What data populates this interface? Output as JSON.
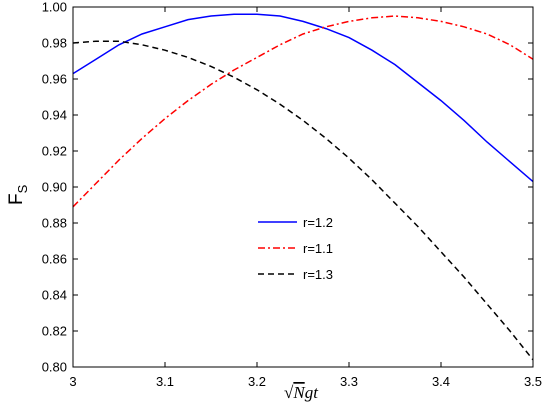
{
  "chart_data": {
    "type": "line",
    "xlabel": {
      "radical": "√",
      "radicand": "N",
      "rest": "gt"
    },
    "ylabel": {
      "main": "F",
      "sub": "S"
    },
    "xlim": [
      3.0,
      3.5
    ],
    "ylim": [
      0.8,
      1.0
    ],
    "xticks": [
      3.0,
      3.1,
      3.2,
      3.3,
      3.4,
      3.5
    ],
    "xtick_labels": [
      "3",
      "3.1",
      "3.2",
      "3.3",
      "3.4",
      "3.5"
    ],
    "yticks": [
      0.8,
      0.82,
      0.84,
      0.86,
      0.88,
      0.9,
      0.92,
      0.94,
      0.96,
      0.98,
      1.0
    ],
    "ytick_labels": [
      "0.80",
      "0.82",
      "0.84",
      "0.86",
      "0.88",
      "0.90",
      "0.92",
      "0.94",
      "0.96",
      "0.98",
      "1.00"
    ],
    "grid": false,
    "legend_position": "center",
    "series": [
      {
        "name": "r=1.2",
        "color": "#0000ff",
        "dash": "solid",
        "x": [
          3.0,
          3.025,
          3.05,
          3.075,
          3.1,
          3.125,
          3.15,
          3.175,
          3.2,
          3.225,
          3.25,
          3.275,
          3.3,
          3.325,
          3.35,
          3.375,
          3.4,
          3.425,
          3.45,
          3.475,
          3.5
        ],
        "y": [
          0.963,
          0.971,
          0.979,
          0.985,
          0.989,
          0.993,
          0.995,
          0.996,
          0.996,
          0.995,
          0.992,
          0.988,
          0.983,
          0.976,
          0.968,
          0.958,
          0.948,
          0.937,
          0.925,
          0.914,
          0.903
        ]
      },
      {
        "name": "r=1.1",
        "color": "#ff0000",
        "dash": "dashdot",
        "x": [
          3.0,
          3.025,
          3.05,
          3.075,
          3.1,
          3.125,
          3.15,
          3.175,
          3.2,
          3.225,
          3.25,
          3.275,
          3.3,
          3.325,
          3.35,
          3.375,
          3.4,
          3.425,
          3.45,
          3.475,
          3.5
        ],
        "y": [
          0.889,
          0.902,
          0.915,
          0.927,
          0.938,
          0.948,
          0.957,
          0.965,
          0.972,
          0.979,
          0.985,
          0.989,
          0.992,
          0.994,
          0.995,
          0.994,
          0.992,
          0.989,
          0.985,
          0.979,
          0.971
        ]
      },
      {
        "name": "r=1.3",
        "color": "#000000",
        "dash": "dashed",
        "x": [
          3.0,
          3.025,
          3.05,
          3.075,
          3.1,
          3.125,
          3.15,
          3.175,
          3.2,
          3.225,
          3.25,
          3.275,
          3.3,
          3.325,
          3.35,
          3.375,
          3.4,
          3.425,
          3.45,
          3.475,
          3.5
        ],
        "y": [
          0.98,
          0.981,
          0.981,
          0.979,
          0.976,
          0.972,
          0.967,
          0.961,
          0.954,
          0.946,
          0.937,
          0.927,
          0.916,
          0.904,
          0.891,
          0.878,
          0.864,
          0.85,
          0.835,
          0.82,
          0.804
        ]
      }
    ]
  }
}
